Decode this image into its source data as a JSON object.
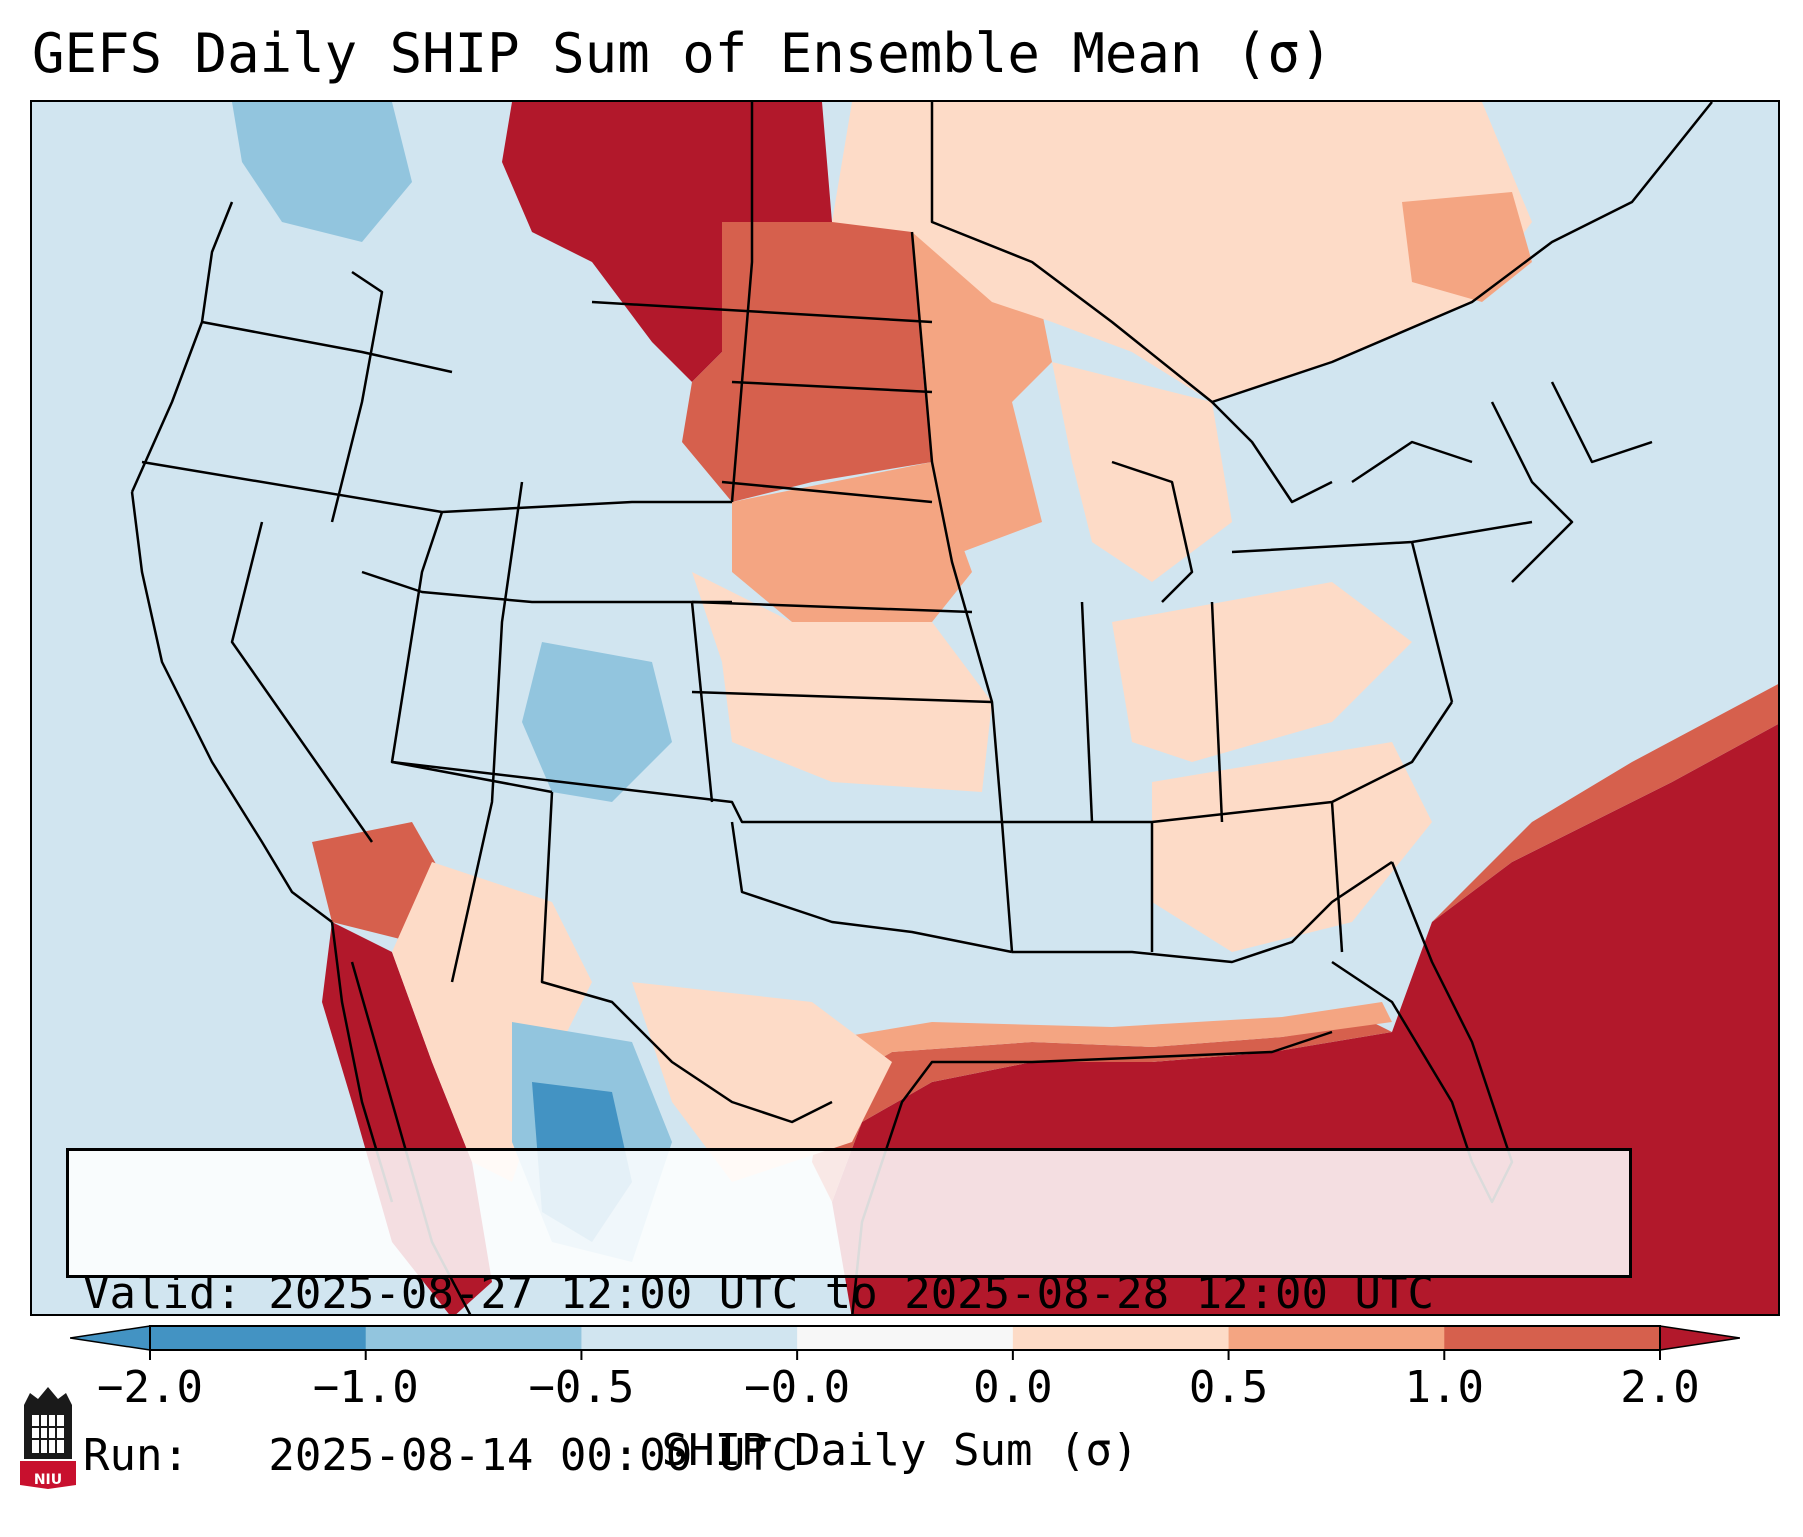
{
  "title": "GEFS Daily SHIP Sum of Ensemble Mean (σ)",
  "valid_line": "Valid: 2025-08-27 12:00 UTC to 2025-08-28 12:00 UTC",
  "run_line": "Run:   2025-08-14 00:00 UTC",
  "colorbar": {
    "label": "SHIP Daily Sum (σ)",
    "ticks": [
      "−2.0",
      "−1.0",
      "−0.5",
      "−0.0",
      "0.0",
      "0.5",
      "1.0",
      "2.0"
    ],
    "colors": [
      "#4393c3",
      "#92c5de",
      "#d1e5f0",
      "#f7f7f7",
      "#fddbc7",
      "#f4a582",
      "#d6604d",
      "#b2182b"
    ]
  },
  "logo": {
    "text": "NIU"
  },
  "colors": {
    "ocean": "#d1e5f0",
    "border": "#000000"
  }
}
